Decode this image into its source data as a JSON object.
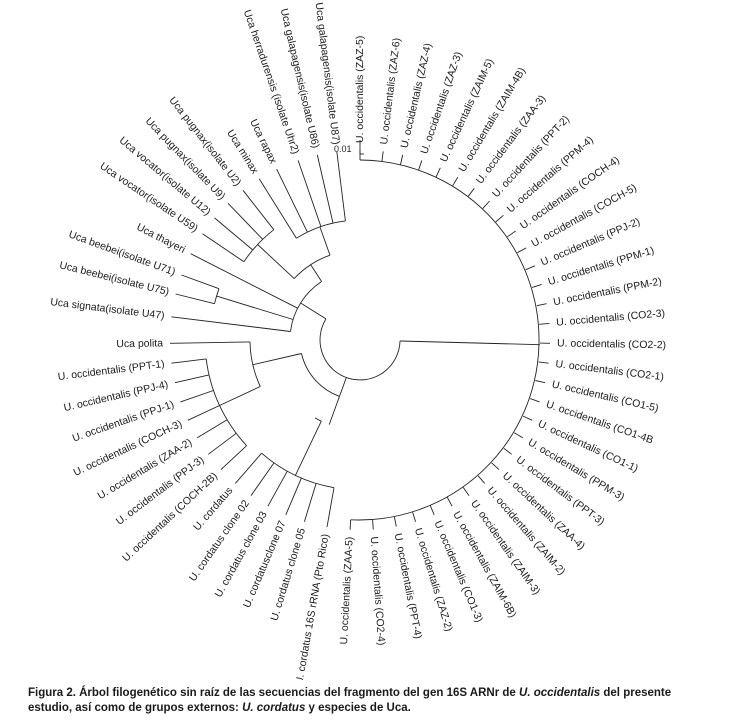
{
  "tree": {
    "scale_label": "0.01",
    "leaves": [
      {
        "label": "U. occidentalis (ZAZ-5)",
        "angle": -90
      },
      {
        "label": "U. occidentalis (ZAZ-6)",
        "angle": -83
      },
      {
        "label": "U. occidentalis (ZAZ-4)",
        "angle": -77
      },
      {
        "label": "U. occidentalis (ZAZ-3)",
        "angle": -71
      },
      {
        "label": "U. occidentalis (ZAIM-5)",
        "angle": -65
      },
      {
        "label": "U. occidentalis (ZAIM-4B)",
        "angle": -59
      },
      {
        "label": "U. occidentalis (ZAA-3)",
        "angle": -53
      },
      {
        "label": "U. occidentalis (PPT-2)",
        "angle": -47
      },
      {
        "label": "U. occidentalis (PPM-4)",
        "angle": -41
      },
      {
        "label": "U. occidentalis (COCH-4)",
        "angle": -35
      },
      {
        "label": "U. occidentalis (COCH-5)",
        "angle": -29
      },
      {
        "label": "U. occidentalis (PPJ-2)",
        "angle": -23
      },
      {
        "label": "U. occidentalis (PPM-1)",
        "angle": -17
      },
      {
        "label": "U. occidentalis (PPM-2)",
        "angle": -11
      },
      {
        "label": "U. occidentalis (CO2-3)",
        "angle": -5
      },
      {
        "label": "U. occidentalis (CO2-2)",
        "angle": 1
      },
      {
        "label": "U. occidentalis (CO2-1)",
        "angle": 7
      },
      {
        "label": "U. occidentalis (CO1-5)",
        "angle": 13
      },
      {
        "label": "U. occidentalis (CO1-4B",
        "angle": 19
      },
      {
        "label": "U. occidentalis (CO1-1)",
        "angle": 25
      },
      {
        "label": "U. occidentalis (PPM-3)",
        "angle": 31
      },
      {
        "label": "U. occidentalis (PPT-3)",
        "angle": 37
      },
      {
        "label": "U. occidentalis (ZAA-4)",
        "angle": 43
      },
      {
        "label": "U. occidentalis (ZAIM-2)",
        "angle": 49
      },
      {
        "label": "U. occidentalis (ZAIM-3)",
        "angle": 55
      },
      {
        "label": "U. occidentalis (ZAIM-6B)",
        "angle": 61
      },
      {
        "label": "U. occidentalis (CO1-3)",
        "angle": 67
      },
      {
        "label": "U. occidentalis (ZAZ-2)",
        "angle": 73
      },
      {
        "label": "U. occidentalis (PPT-4)",
        "angle": 79
      },
      {
        "label": "U. occidentalis (CO2-4)",
        "angle": 86
      },
      {
        "label": "U. occidentalis (ZAA-5)",
        "angle": 93
      },
      {
        "label": "U. cordatus 16S rRNA (Pto Rico)",
        "angle": 100
      },
      {
        "label": "U. cordatus clone 05",
        "angle": 107
      },
      {
        "label": "U. cordatusclone 07",
        "angle": 113
      },
      {
        "label": "U. cordatus clone 03",
        "angle": 119
      },
      {
        "label": "U. cordatus clone 02",
        "angle": 125
      },
      {
        "label": "U. cordatus",
        "angle": 131
      },
      {
        "label": "U. occidentalis (COCH-2B)",
        "angle": 137
      },
      {
        "label": "U. occidentalis (PPJ-3)",
        "angle": 143
      },
      {
        "label": "U. occidentalis (ZAA-2)",
        "angle": 149
      },
      {
        "label": "U. occidentalis (COCH-3)",
        "angle": 155
      },
      {
        "label": "U. occidentalis (PPJ-1)",
        "angle": 161
      },
      {
        "label": "U. occidentalis (PPJ-4)",
        "angle": 167
      },
      {
        "label": "U. occidentalis (PPT-1)",
        "angle": 173
      },
      {
        "label": "Uca polita",
        "angle": 179
      },
      {
        "label": "Uca signata(isolate U47)",
        "angle": 187
      },
      {
        "label": "Uca beebei(isolate U75)",
        "angle": 194
      },
      {
        "label": "Uca beebei(isolate U71)",
        "angle": 200
      },
      {
        "label": "Uca thayeri",
        "angle": 207
      },
      {
        "label": "Uca vocator(isolate U59)",
        "angle": 214
      },
      {
        "label": "Uca vocator(isolate U12)",
        "angle": 220
      },
      {
        "label": "Uca pugnax(isolate U9)",
        "angle": 226
      },
      {
        "label": "Uca pugnax(isolate U2)",
        "angle": 232
      },
      {
        "label": "Uca minax",
        "angle": 238
      },
      {
        "label": "Uca rapax",
        "angle": 244
      },
      {
        "label": "Uca herradurensis (isolate Uhr2)",
        "angle": 251
      },
      {
        "label": "Uca galapagensis(isolate U86)",
        "angle": 257
      },
      {
        "label": "Uca galapagensis(isolate U87)",
        "angle": 263
      }
    ]
  },
  "caption": {
    "p1": "Figura 2. Árbol filogenético sin raíz de las secuencias del fragmento del gen 16S ARNr de ",
    "em1": "U. occidentalis",
    "p2": " del presente estudio, así como de grupos externos: ",
    "em2": "U. cordatus",
    "p3": " y especies de Uca."
  }
}
